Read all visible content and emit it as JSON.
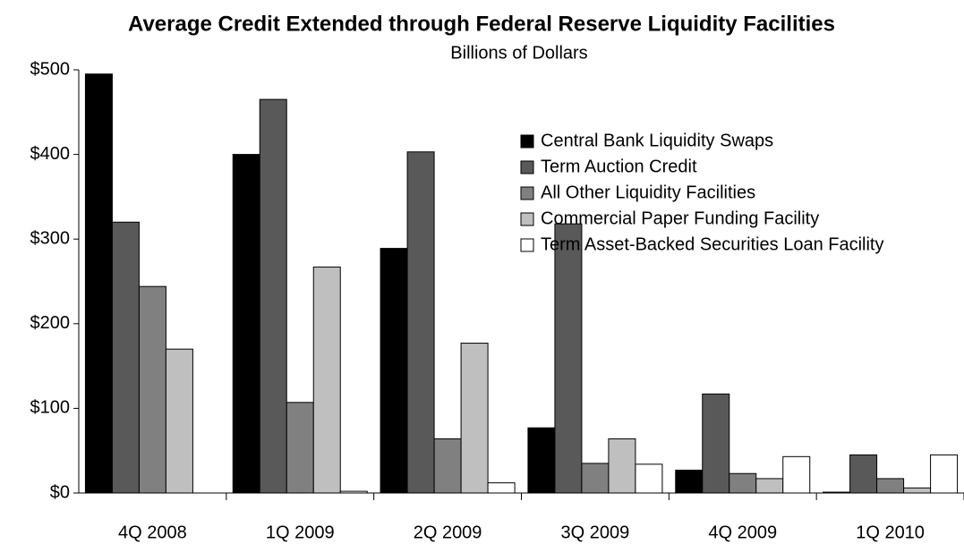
{
  "chart_data": {
    "type": "bar",
    "title": "Average Credit Extended through Federal Reserve Liquidity Facilities",
    "subtitle": "Billions of Dollars",
    "categories": [
      "4Q 2008",
      "1Q 2009",
      "2Q 2009",
      "3Q 2009",
      "4Q 2009",
      "1Q 2010"
    ],
    "series": [
      {
        "name": "Central Bank Liquidity Swaps",
        "color": "#000000",
        "values": [
          495,
          400,
          289,
          77,
          27,
          1
        ]
      },
      {
        "name": "Term Auction Credit",
        "color": "#595959",
        "values": [
          320,
          465,
          403,
          318,
          117,
          45
        ]
      },
      {
        "name": "All Other Liquidity Facilities",
        "color": "#808080",
        "values": [
          244,
          107,
          64,
          35,
          23,
          17
        ]
      },
      {
        "name": "Commercial Paper Funding Facility",
        "color": "#bfbfbf",
        "values": [
          170,
          267,
          177,
          64,
          17,
          6
        ]
      },
      {
        "name": "Term Asset-Backed Securities Loan Facility",
        "color": "#ffffff",
        "values": [
          0,
          2,
          12,
          34,
          43,
          45
        ]
      }
    ],
    "ylim": [
      0,
      500
    ],
    "yticks": [
      {
        "value": 0,
        "label": "$0"
      },
      {
        "value": 100,
        "label": "$100"
      },
      {
        "value": 200,
        "label": "$200"
      },
      {
        "value": 300,
        "label": "$300"
      },
      {
        "value": 400,
        "label": "$400"
      },
      {
        "value": 500,
        "label": "$500"
      }
    ],
    "grid": false,
    "legend": "upper right"
  }
}
